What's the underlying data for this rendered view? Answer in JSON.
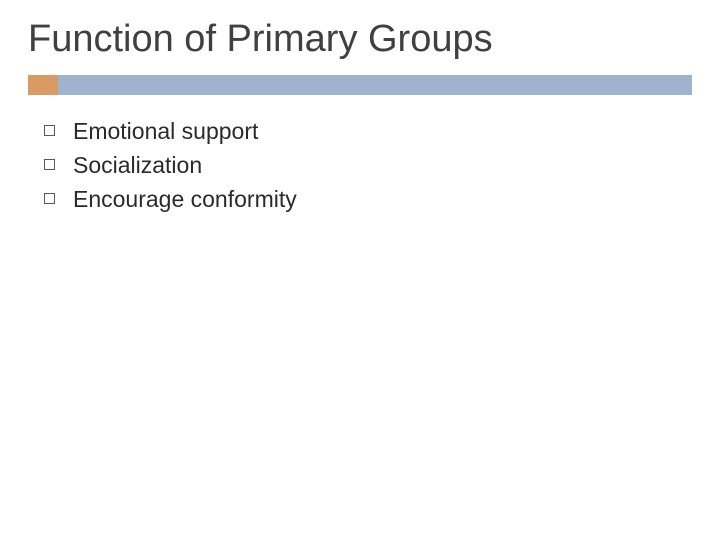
{
  "slide": {
    "title": "Function of Primary Groups",
    "title_fontsize": 38,
    "title_color": "#404040",
    "divider": {
      "accent_color": "#d99a63",
      "main_color": "#9db3ce",
      "height": 20,
      "accent_width": 30
    },
    "background_color": "#ffffff",
    "bullets": [
      {
        "text": "Emotional support"
      },
      {
        "text": "Socialization"
      },
      {
        "text": "Encourage conformity"
      }
    ],
    "bullet_fontsize": 23,
    "bullet_text_color": "#2a2a2a",
    "bullet_marker_border_color": "#5a5a5a"
  }
}
